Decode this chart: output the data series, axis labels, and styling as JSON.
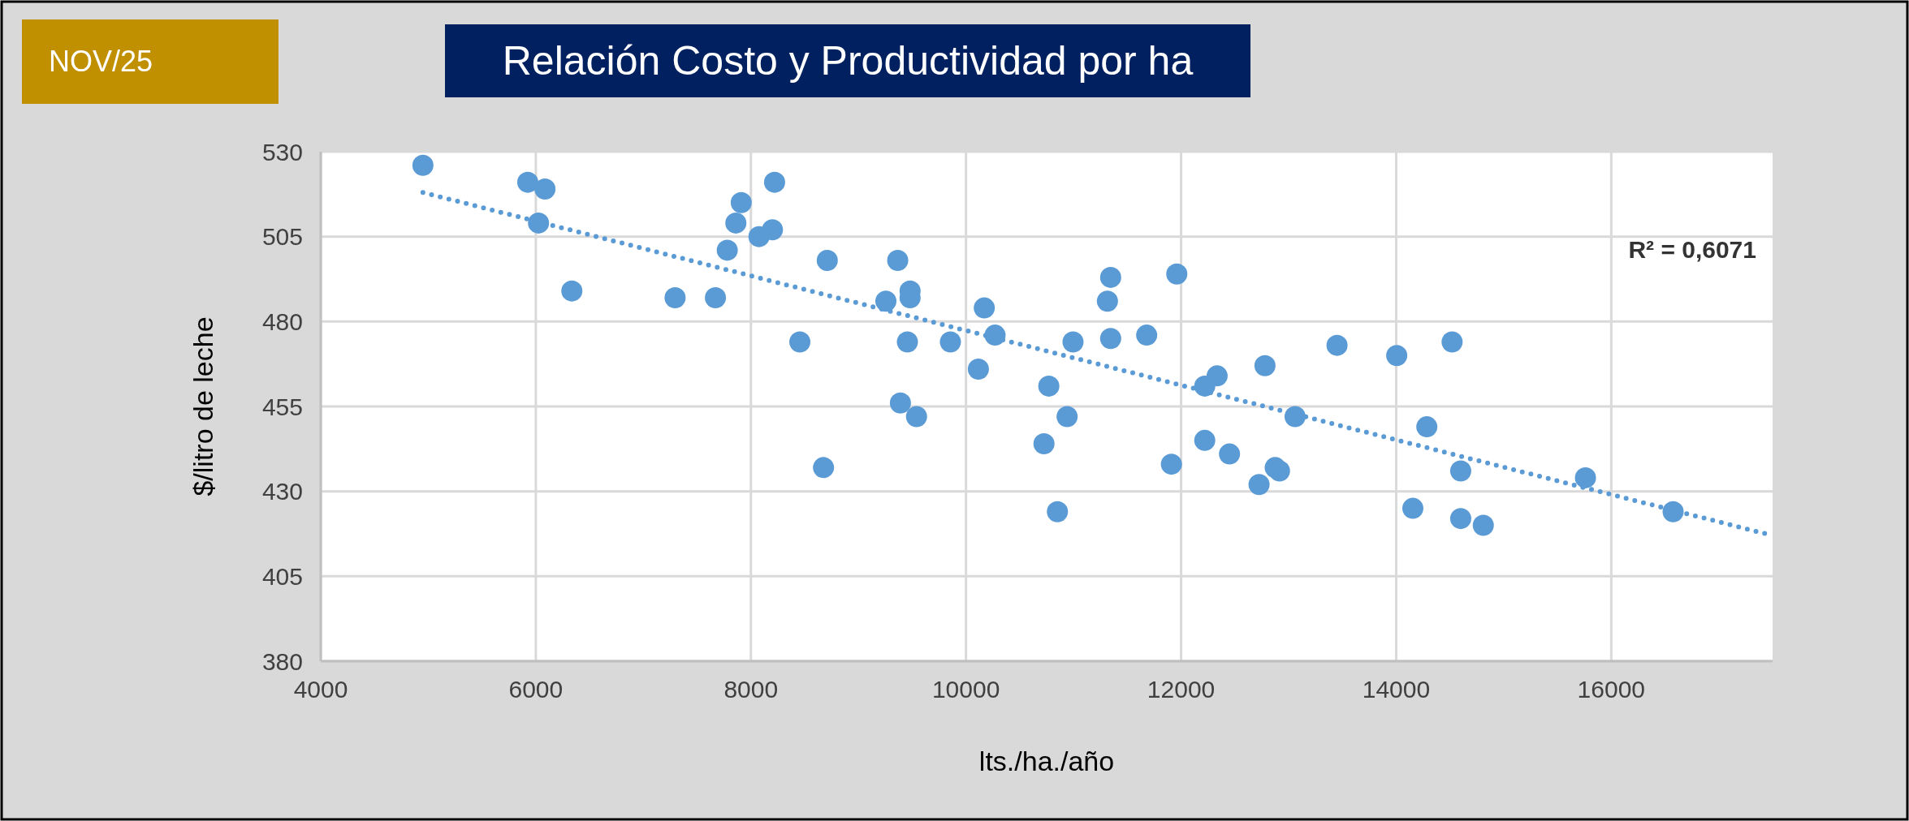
{
  "chart_data": {
    "type": "scatter",
    "title": "Relación Costo y Productividad por ha",
    "subtitle": "NOV/25",
    "xlabel": "lts./ha./año",
    "ylabel": "$/litro de leche",
    "annotations": [
      "R² = 0,6071"
    ],
    "xlim": [
      4000,
      17500
    ],
    "xticks": [
      4000,
      6000,
      8000,
      10000,
      12000,
      14000,
      16000
    ],
    "ylim": [
      380,
      530
    ],
    "yticks": [
      380,
      405,
      430,
      455,
      480,
      505,
      530
    ],
    "grid": true,
    "marker": "circle",
    "series": [
      {
        "color": "#5b9bd5",
        "x": [
          4950,
          5925,
          6085,
          6025,
          6335,
          7295,
          7670,
          7780,
          7860,
          7910,
          8075,
          8200,
          8220,
          8455,
          8675,
          8710,
          9255,
          9365,
          9390,
          9455,
          9480,
          9480,
          9540,
          9855,
          10115,
          10170,
          10270,
          10725,
          10770,
          10850,
          10940,
          10995,
          11315,
          11345,
          11345,
          11680,
          11910,
          11960,
          12220,
          12220,
          12335,
          12450,
          12780,
          12725,
          12875,
          12915,
          13060,
          13450,
          14005,
          14155,
          14285,
          14520,
          14600,
          14600,
          14810,
          15760,
          16575
        ],
        "values": [
          526,
          521,
          519,
          509,
          489,
          487,
          487,
          501,
          509,
          515,
          505,
          507,
          521,
          474,
          437,
          498,
          486,
          498,
          456,
          474,
          489,
          487,
          452,
          474,
          466,
          484,
          476,
          444,
          461,
          424,
          452,
          474,
          486,
          493,
          475,
          476,
          438,
          494,
          461,
          445,
          464,
          441,
          467,
          432,
          437,
          436,
          452,
          473,
          470,
          425,
          449,
          474,
          436,
          422,
          420,
          434,
          424
        ]
      },
      {
        "type": "line",
        "color": "#5b9bd5",
        "line_style": "dotted",
        "marker": "none",
        "x": [
          4950,
          17500
        ],
        "values": [
          518,
          417
        ]
      }
    ]
  }
}
